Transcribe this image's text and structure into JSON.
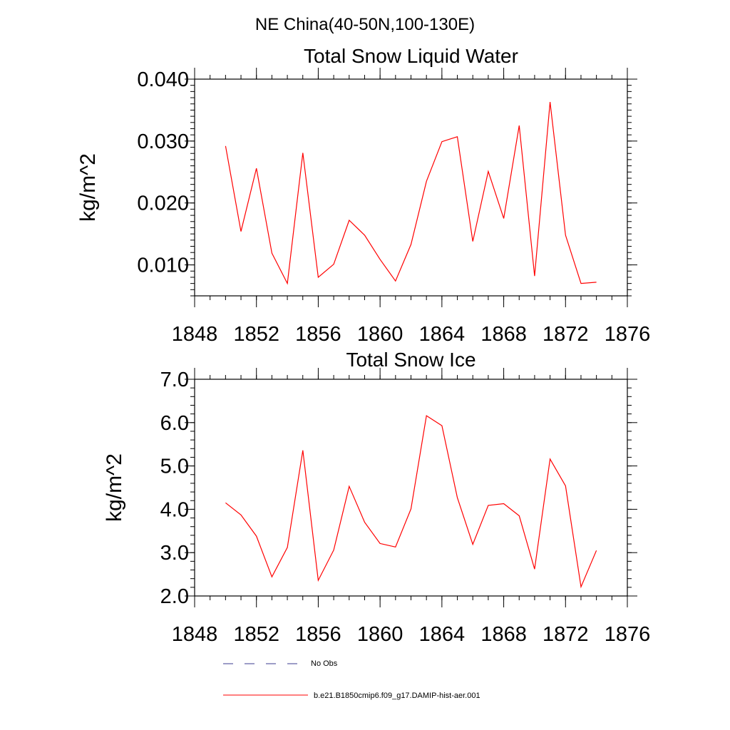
{
  "figure_title": "NE China(40-50N,100-130E)",
  "colors": {
    "model_line": "#ff0000",
    "obs_line": "#3b3b8f",
    "axis": "#000000"
  },
  "legend": {
    "obs_label": "No Obs",
    "model_label": "b.e21.B1850cmip6.f09_g17.DAMIP-hist-aer.001"
  },
  "chart_data": [
    {
      "type": "line",
      "title": "Total Snow Liquid Water",
      "xlabel": "",
      "ylabel": "kg/m^2",
      "xlim": [
        1848,
        1876
      ],
      "ylim": [
        0.005,
        0.04
      ],
      "x_ticks": [
        1848,
        1852,
        1856,
        1860,
        1864,
        1868,
        1872,
        1876
      ],
      "x_tick_labels": [
        "1848",
        "1852",
        "1856",
        "1860",
        "1864",
        "1868",
        "1872",
        "1876"
      ],
      "y_ticks": [
        0.01,
        0.02,
        0.03,
        0.04
      ],
      "y_tick_labels": [
        "0.010",
        "0.020",
        "0.030",
        "0.040"
      ],
      "y_minor_step": 0.001,
      "x_minor_step": 1,
      "grid": false,
      "series": [
        {
          "x": [
            1850,
            1851,
            1852,
            1853,
            1854,
            1855,
            1856,
            1857,
            1858,
            1859,
            1860,
            1861,
            1862,
            1863,
            1864,
            1865,
            1866,
            1867,
            1868,
            1869,
            1870,
            1871,
            1872,
            1873,
            1874
          ],
          "values": [
            0.0292,
            0.0154,
            0.0256,
            0.0119,
            0.007,
            0.0281,
            0.008,
            0.0101,
            0.0172,
            0.0148,
            0.0109,
            0.0074,
            0.0133,
            0.0235,
            0.0299,
            0.0307,
            0.0138,
            0.0251,
            0.0175,
            0.0325,
            0.0082,
            0.0363,
            0.0148,
            0.007,
            0.0072
          ]
        }
      ]
    },
    {
      "type": "line",
      "title": "Total Snow Ice",
      "xlabel": "",
      "ylabel": "kg/m^2",
      "xlim": [
        1848,
        1876
      ],
      "ylim": [
        2.0,
        7.0
      ],
      "x_ticks": [
        1848,
        1852,
        1856,
        1860,
        1864,
        1868,
        1872,
        1876
      ],
      "x_tick_labels": [
        "1848",
        "1852",
        "1856",
        "1860",
        "1864",
        "1868",
        "1872",
        "1876"
      ],
      "y_ticks": [
        2.0,
        3.0,
        4.0,
        5.0,
        6.0,
        7.0
      ],
      "y_tick_labels": [
        "2.0",
        "3.0",
        "4.0",
        "5.0",
        "6.0",
        "7.0"
      ],
      "y_minor_step": 0.2,
      "x_minor_step": 1,
      "grid": false,
      "series": [
        {
          "x": [
            1850,
            1851,
            1852,
            1853,
            1854,
            1855,
            1856,
            1857,
            1858,
            1859,
            1860,
            1861,
            1862,
            1863,
            1864,
            1865,
            1866,
            1867,
            1868,
            1869,
            1870,
            1871,
            1872,
            1873,
            1874
          ],
          "values": [
            4.15,
            3.87,
            3.38,
            2.44,
            3.12,
            5.36,
            2.36,
            3.06,
            4.53,
            3.7,
            3.21,
            3.13,
            4.01,
            6.16,
            5.93,
            4.27,
            3.19,
            4.09,
            4.13,
            3.85,
            2.62,
            5.16,
            4.54,
            2.21,
            3.05
          ]
        }
      ]
    }
  ]
}
